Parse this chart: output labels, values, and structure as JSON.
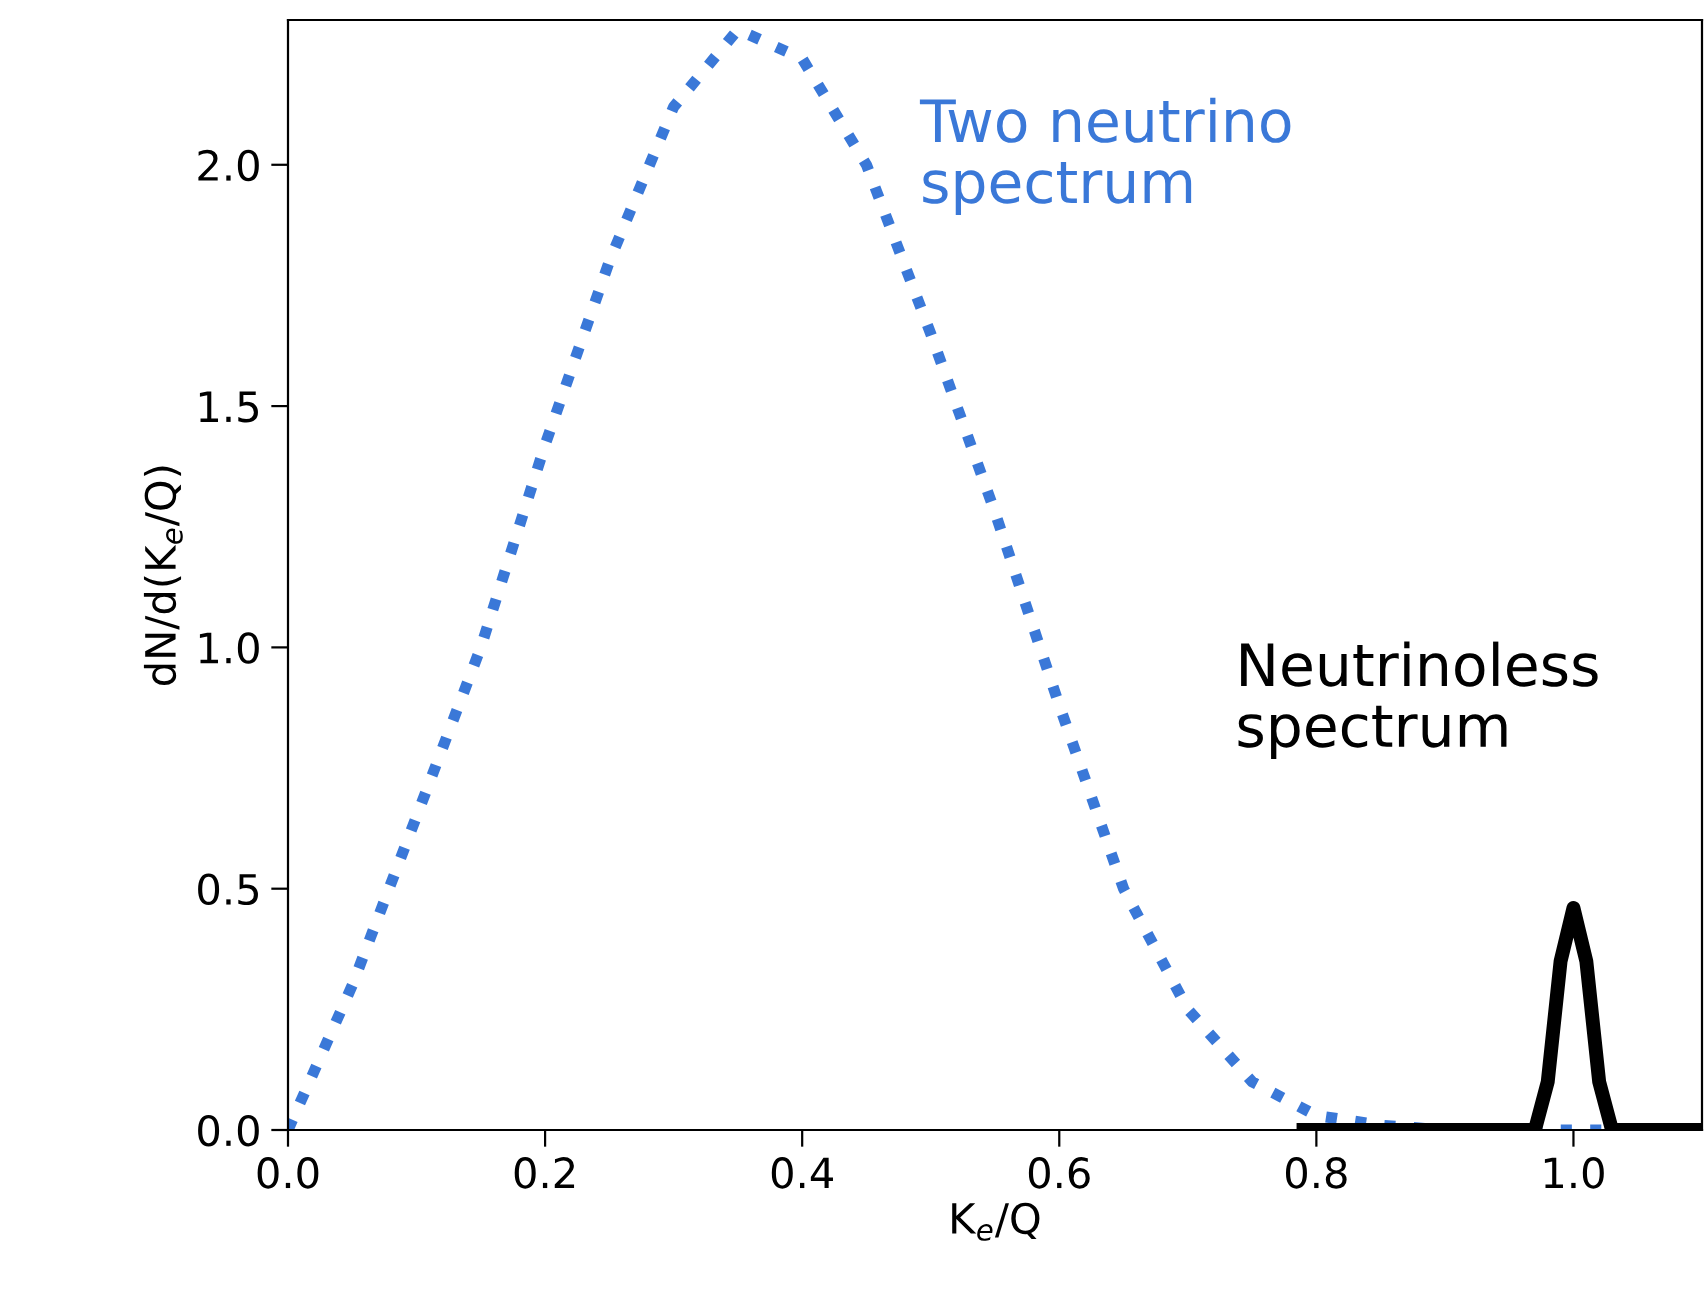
{
  "chart_data": {
    "type": "line",
    "xlabel": "K$_{e}$/Q",
    "ylabel": "dN/d(K$_{e}$/Q)",
    "xlim": [
      0,
      1.1
    ],
    "ylim": [
      0,
      2.3
    ],
    "xticks": [
      {
        "value": 0,
        "label": "0.0"
      },
      {
        "value": 0.2,
        "label": "0.2"
      },
      {
        "value": 0.4,
        "label": "0.4"
      },
      {
        "value": 0.6,
        "label": "0.6"
      },
      {
        "value": 0.8,
        "label": "0.8"
      },
      {
        "value": 1.0,
        "label": "1.0"
      }
    ],
    "yticks": [
      {
        "value": 0,
        "label": "0.0"
      },
      {
        "value": 0.5,
        "label": "0.5"
      },
      {
        "value": 1.0,
        "label": "1.0"
      },
      {
        "value": 1.5,
        "label": "1.5"
      },
      {
        "value": 2.0,
        "label": "2.0"
      }
    ],
    "grid": false,
    "legend": false,
    "series": [
      {
        "name": "Two neutrino\nspectrum",
        "color": "#3a78d8",
        "line_style": "dotted",
        "x": [
          0,
          0.05,
          0.1,
          0.15,
          0.2,
          0.25,
          0.3,
          0.35,
          0.4,
          0.45,
          0.5,
          0.55,
          0.6,
          0.65,
          0.7,
          0.75,
          0.8,
          0.85,
          0.9,
          1.0,
          1.1
        ],
        "values": [
          0,
          0.3,
          0.65,
          1.0,
          1.42,
          1.8,
          2.12,
          2.28,
          2.22,
          2.0,
          1.65,
          1.28,
          0.88,
          0.5,
          0.25,
          0.1,
          0.03,
          0.01,
          0,
          0,
          0
        ]
      },
      {
        "name": "Neutrinoless\nspectrum",
        "color": "#000000",
        "line_style": "solid",
        "x": [
          0.79,
          0.97,
          0.98,
          0.99,
          1.0,
          1.01,
          1.02,
          1.03,
          1.1
        ],
        "values": [
          0,
          0,
          0.1,
          0.35,
          0.46,
          0.35,
          0.1,
          0,
          0
        ]
      }
    ]
  }
}
